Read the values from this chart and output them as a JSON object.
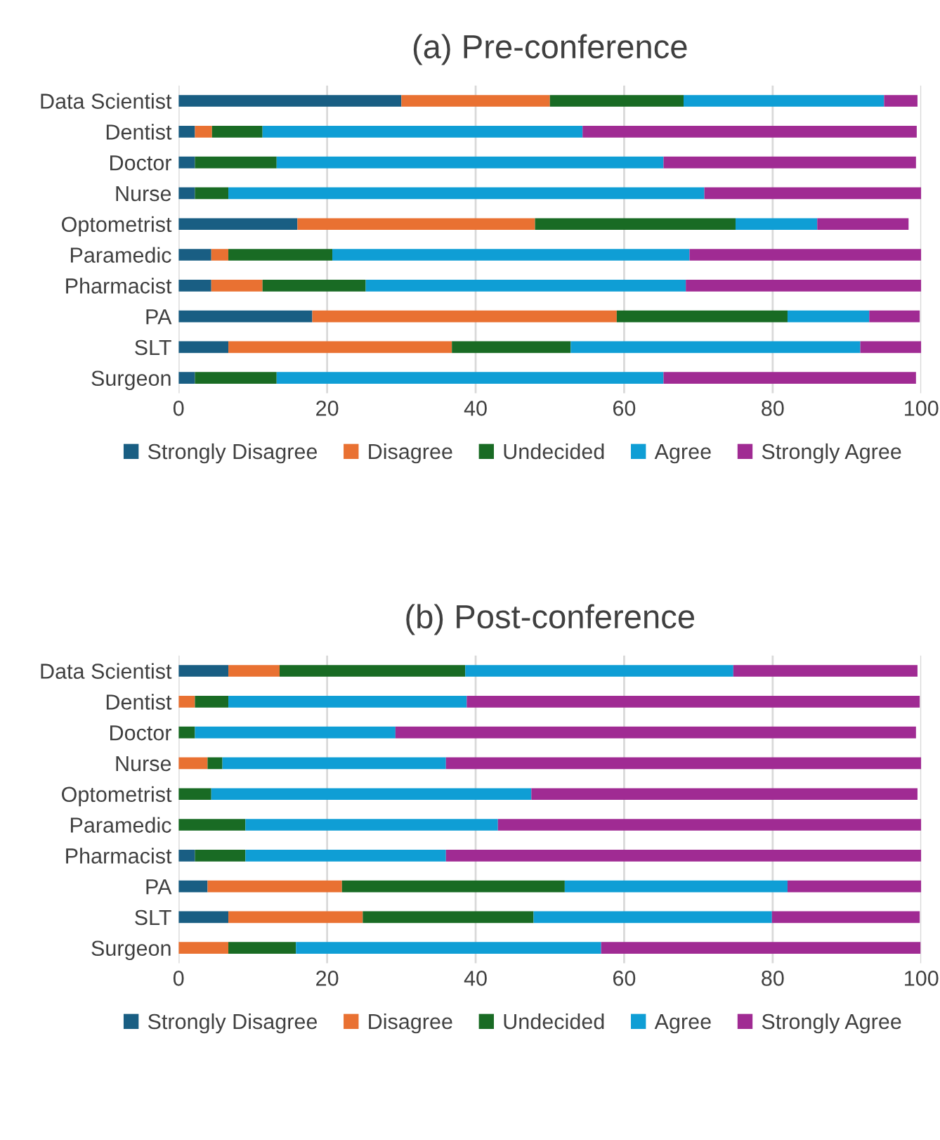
{
  "chart_data": [
    {
      "type": "bar",
      "orientation": "horizontal",
      "stacked": true,
      "title": "(a) Pre-conference",
      "categories": [
        "Data Scientist",
        "Dentist",
        "Doctor",
        "Nurse",
        "Optometrist",
        "Paramedic",
        "Pharmacist",
        "PA",
        "SLT",
        "Surgeon"
      ],
      "xlim": [
        0,
        100
      ],
      "xticks": [
        0,
        20,
        40,
        60,
        80,
        100
      ],
      "grid": "x",
      "legend": "bottom",
      "series": [
        {
          "name": "Strongly Disagree",
          "color": "#195e83",
          "values": [
            30,
            2.2,
            2.2,
            2.2,
            16,
            4.4,
            4.4,
            18,
            6.7,
            2.2
          ]
        },
        {
          "name": "Disagree",
          "color": "#e97132",
          "values": [
            20,
            2.3,
            0,
            0,
            32,
            2.3,
            6.9,
            41,
            30.1,
            0
          ]
        },
        {
          "name": "Undecided",
          "color": "#196b24",
          "values": [
            18,
            6.8,
            11,
            4.5,
            27,
            14,
            13.9,
            23,
            16,
            11
          ]
        },
        {
          "name": "Agree",
          "color": "#0f9ed5",
          "values": [
            27,
            43.1,
            52.1,
            64.1,
            11,
            48.1,
            43.1,
            11,
            39,
            52.1
          ]
        },
        {
          "name": "Strongly Agree",
          "color": "#a02b93",
          "values": [
            4.5,
            45,
            34,
            29.2,
            12.3,
            31.2,
            31.7,
            6.8,
            8.2,
            34
          ]
        }
      ]
    },
    {
      "type": "bar",
      "orientation": "horizontal",
      "stacked": true,
      "title": "(b) Post-conference",
      "categories": [
        "Data Scientist",
        "Dentist",
        "Doctor",
        "Nurse",
        "Optometrist",
        "Paramedic",
        "Pharmacist",
        "PA",
        "SLT",
        "Surgeon"
      ],
      "xlim": [
        0,
        100
      ],
      "xticks": [
        0,
        20,
        40,
        60,
        80,
        100
      ],
      "grid": "x",
      "legend": "bottom",
      "series": [
        {
          "name": "Strongly Disagree",
          "color": "#195e83",
          "values": [
            6.7,
            0,
            0,
            0,
            0,
            0,
            2.2,
            3.9,
            6.7,
            0
          ]
        },
        {
          "name": "Disagree",
          "color": "#e97132",
          "values": [
            6.9,
            2.2,
            0,
            3.9,
            0,
            0,
            0,
            18.1,
            18.1,
            6.7
          ]
        },
        {
          "name": "Undecided",
          "color": "#196b24",
          "values": [
            25,
            4.5,
            2.2,
            2,
            4.4,
            9,
            6.8,
            30,
            23,
            9.1
          ]
        },
        {
          "name": "Agree",
          "color": "#0f9ed5",
          "values": [
            36.1,
            32.1,
            27,
            30.1,
            43.1,
            34,
            27,
            30,
            32.1,
            41.1
          ]
        },
        {
          "name": "Strongly Agree",
          "color": "#a02b93",
          "values": [
            24.8,
            61,
            70.1,
            64,
            52,
            57,
            64,
            18,
            19.9,
            43
          ]
        }
      ]
    }
  ]
}
